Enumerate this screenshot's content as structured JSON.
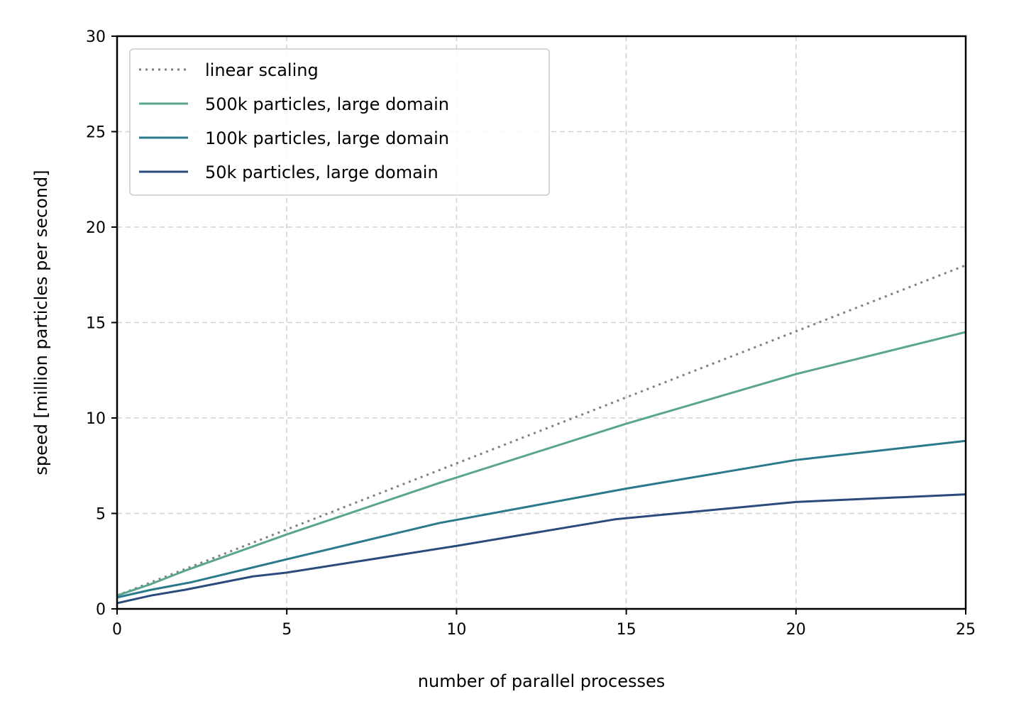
{
  "chart_data": {
    "type": "line",
    "xlabel": "number of parallel processes",
    "ylabel": "speed [million particles per second]",
    "xlim": [
      0,
      25
    ],
    "ylim": [
      0,
      30
    ],
    "xticks": [
      0,
      5,
      10,
      15,
      20,
      25
    ],
    "yticks": [
      0,
      5,
      10,
      15,
      20,
      25,
      30
    ],
    "grid": true,
    "legend_position": "top-left",
    "series": [
      {
        "name": "linear scaling",
        "style": "dotted",
        "color": "#808080",
        "x": [
          0,
          25
        ],
        "y": [
          0.7,
          18.0
        ]
      },
      {
        "name": "500k particles, large domain",
        "style": "solid",
        "color": "#5aa58e",
        "x": [
          0,
          1,
          2,
          5,
          9.5,
          15,
          20,
          25
        ],
        "y": [
          0.7,
          1.3,
          2.0,
          3.9,
          6.6,
          9.7,
          12.3,
          14.5
        ]
      },
      {
        "name": "100k particles, large domain",
        "style": "solid",
        "color": "#2a7a8c",
        "x": [
          0,
          1,
          2.2,
          5,
          9.5,
          15,
          20,
          25
        ],
        "y": [
          0.6,
          1.0,
          1.4,
          2.6,
          4.5,
          6.3,
          7.8,
          8.8
        ]
      },
      {
        "name": "50k particles, large domain",
        "style": "solid",
        "color": "#2a4b7c",
        "x": [
          0,
          1,
          2,
          4,
          5,
          10,
          14.7,
          20,
          25
        ],
        "y": [
          0.3,
          0.7,
          1.0,
          1.7,
          1.9,
          3.3,
          4.7,
          5.6,
          6.0
        ]
      }
    ]
  }
}
